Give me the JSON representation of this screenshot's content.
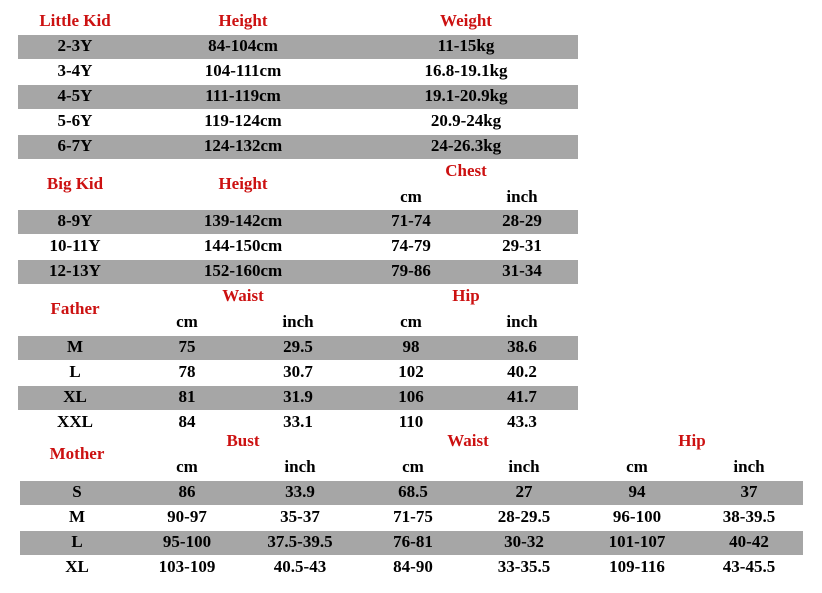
{
  "tables": [
    {
      "label": "Little Kid",
      "groups": [
        "Height",
        "Weight"
      ],
      "rows": [
        [
          "2-3Y",
          "84-104cm",
          "11-15kg"
        ],
        [
          "3-4Y",
          "104-111cm",
          "16.8-19.1kg"
        ],
        [
          "4-5Y",
          "111-119cm",
          "19.1-20.9kg"
        ],
        [
          "5-6Y",
          "119-124cm",
          "20.9-24kg"
        ],
        [
          "6-7Y",
          "124-132cm",
          "24-26.3kg"
        ]
      ]
    },
    {
      "label": "Big Kid",
      "groups": [
        "Height",
        "Chest"
      ],
      "units": [
        "cm",
        "inch"
      ],
      "rows": [
        [
          "8-9Y",
          "139-142cm",
          "71-74",
          "28-29"
        ],
        [
          "10-11Y",
          "144-150cm",
          "74-79",
          "29-31"
        ],
        [
          "12-13Y",
          "152-160cm",
          "79-86",
          "31-34"
        ]
      ]
    },
    {
      "label": "Father",
      "groups": [
        "Waist",
        "Hip"
      ],
      "units": [
        "cm",
        "inch",
        "cm",
        "inch"
      ],
      "rows": [
        [
          "M",
          "75",
          "29.5",
          "98",
          "38.6"
        ],
        [
          "L",
          "78",
          "30.7",
          "102",
          "40.2"
        ],
        [
          "XL",
          "81",
          "31.9",
          "106",
          "41.7"
        ],
        [
          "XXL",
          "84",
          "33.1",
          "110",
          "43.3"
        ]
      ]
    },
    {
      "label": "Mother",
      "groups": [
        "Bust",
        "Waist",
        "Hip"
      ],
      "units": [
        "cm",
        "inch",
        "cm",
        "inch",
        "cm",
        "inch"
      ],
      "rows": [
        [
          "S",
          "86",
          "33.9",
          "68.5",
          "27",
          "94",
          "37"
        ],
        [
          "M",
          "90-97",
          "35-37",
          "71-75",
          "28-29.5",
          "96-100",
          "38-39.5"
        ],
        [
          "L",
          "95-100",
          "37.5-39.5",
          "76-81",
          "30-32",
          "101-107",
          "40-42"
        ],
        [
          "XL",
          "103-109",
          "40.5-43",
          "84-90",
          "33-35.5",
          "109-116",
          "43-45.5"
        ]
      ]
    }
  ]
}
